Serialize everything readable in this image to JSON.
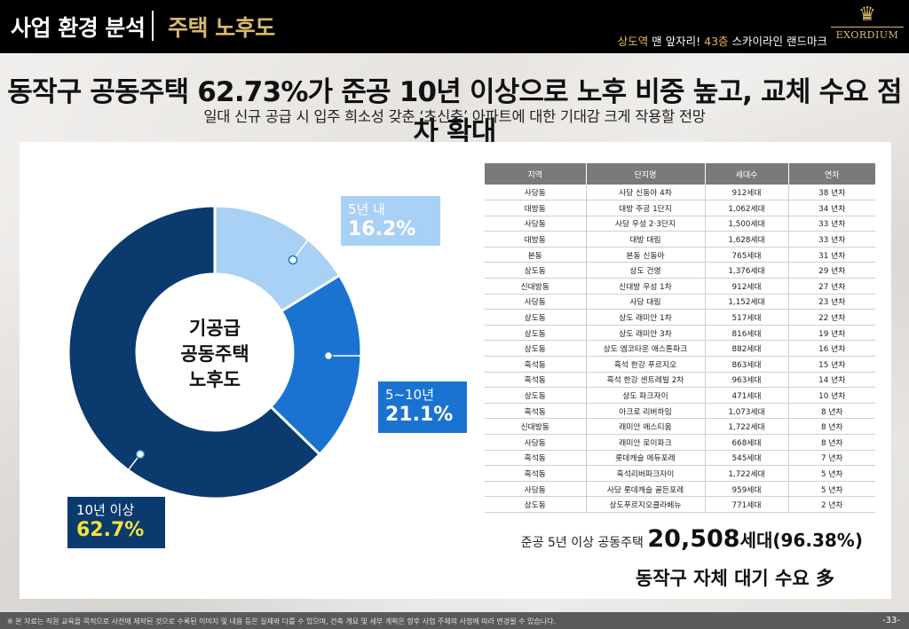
{
  "header": {
    "section_title": "사업 환경 분석",
    "sub_title": "주택 노후도",
    "tagline_prefix": "상도역",
    "tagline_mid": " 맨 앞자리! ",
    "tagline_gold": "43층",
    "tagline_suffix": " 스카이라인 랜드마크",
    "logo_text": "EXORDIUM"
  },
  "headline": "동작구 공동주택 62.73%가 준공 10년 이상으로 노후 비중 높고, 교체 수요 점차 확대",
  "subline": "일대 신규 공급 시 입주 희소성 갖춘 ‘초신축’ 아파트에 대한 기대감 크게 작용할 전망",
  "chart_data": [
    {
      "type": "pie",
      "title": "기공급 공동주택 노후도",
      "title_lines": [
        "기공급",
        "공동주택",
        "노후도"
      ],
      "categories": [
        "5년 내",
        "5~10년",
        "10년 이상"
      ],
      "values": [
        16.2,
        21.1,
        62.7
      ],
      "value_labels": [
        "16.2%",
        "21.1%",
        "62.7%"
      ],
      "colors": [
        "#a9d0f5",
        "#1a73d0",
        "#0b3a6e"
      ]
    },
    {
      "type": "table",
      "columns": [
        "지역",
        "단지명",
        "세대수",
        "연차"
      ],
      "rows": [
        [
          "사당동",
          "사당 신동아 4차",
          "912세대",
          "38 년차"
        ],
        [
          "대방동",
          "대방 주공 1단지",
          "1,062세대",
          "34 년차"
        ],
        [
          "사당동",
          "사당 우성 2·3단지",
          "1,500세대",
          "33 년차"
        ],
        [
          "대방동",
          "대방 대림",
          "1,628세대",
          "33 년차"
        ],
        [
          "본동",
          "본동 신동아",
          "765세대",
          "31 년차"
        ],
        [
          "상도동",
          "상도 건영",
          "1,376세대",
          "29 년차"
        ],
        [
          "신대방동",
          "신대방 우성 1차",
          "912세대",
          "27 년차"
        ],
        [
          "사당동",
          "사당 대림",
          "1,152세대",
          "23 년차"
        ],
        [
          "상도동",
          "상도 래미안 1차",
          "517세대",
          "22 년차"
        ],
        [
          "상도동",
          "상도 래미안 3차",
          "816세대",
          "19 년차"
        ],
        [
          "상도동",
          "상도 엠코타운 애스톤파크",
          "882세대",
          "16 년차"
        ],
        [
          "흑석동",
          "흑석 한강 푸르지오",
          "863세대",
          "15 년차"
        ],
        [
          "흑석동",
          "흑석 한강 센트레빌 2차",
          "963세대",
          "14 년차"
        ],
        [
          "상도동",
          "상도 파크자이",
          "471세대",
          "10 년차"
        ],
        [
          "흑석동",
          "아크로 리버하임",
          "1,073세대",
          "8 년차"
        ],
        [
          "신대방동",
          "래미안 에스티움",
          "1,722세대",
          "8 년차"
        ],
        [
          "사당동",
          "래미안 로이파크",
          "668세대",
          "8 년차"
        ],
        [
          "흑석동",
          "롯데캐슬 에듀포레",
          "545세대",
          "7 년차"
        ],
        [
          "흑석동",
          "흑석리버파크자이",
          "1,722세대",
          "5 년차"
        ],
        [
          "사당동",
          "사당 롯데캐슬 골든포레",
          "959세대",
          "5 년차"
        ],
        [
          "상도동",
          "상도푸르지오클라베뉴",
          "771세대",
          "2 년차"
        ]
      ]
    }
  ],
  "summary": {
    "label": "준공 5년 이상 공동주택 ",
    "value": "20,508",
    "unit": "세대",
    "pct": "(96.38%)",
    "line2": "동작구 자체 대기 수요 多"
  },
  "footer": {
    "note": "※ 본 자료는 직원 교육을 목적으로 사전에 제작된 것으로 수록된 이미지 및 내용 등은 실제와 다를 수 있으며, 건축 개요 및 세부 계획은 향후 사업 주체의 사정에 따라 변경될 수 있습니다.",
    "page": "-33-"
  }
}
